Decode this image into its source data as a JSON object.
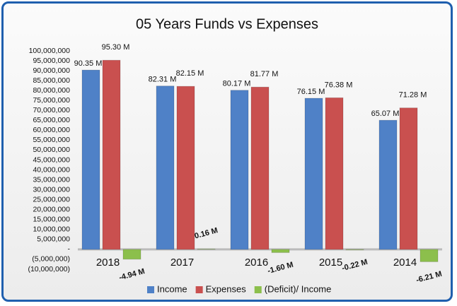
{
  "chart_data": {
    "type": "bar",
    "title": "05 Years Funds vs Expenses",
    "categories": [
      "2018",
      "2017",
      "2016",
      "2015",
      "2014"
    ],
    "series": [
      {
        "name": "Income",
        "color": "#4f81c7",
        "values": [
          90350000,
          82310000,
          80170000,
          76150000,
          65070000
        ],
        "value_labels": [
          "90.35 M",
          "82.31 M",
          "80.17 M",
          "76.15 M",
          "65.07 M"
        ]
      },
      {
        "name": "Expenses",
        "color": "#c9504f",
        "values": [
          95300000,
          82150000,
          81770000,
          76380000,
          71280000
        ],
        "value_labels": [
          "95.30 M",
          "82.15 M",
          "81.77 M",
          "76.38 M",
          "71.28 M"
        ]
      },
      {
        "name": "(Deficit)/ Income",
        "color": "#8cbf4c",
        "values": [
          -4940000,
          160000,
          -1600000,
          -220000,
          -6210000
        ],
        "value_labels": [
          "-4.94 M",
          "0.16 M",
          "-1.60 M",
          "-0.22 M",
          "-6.21 M"
        ]
      }
    ],
    "ylim": [
      -10000000,
      100000000
    ],
    "yticks": [
      {
        "value": -10000000,
        "label": "(10,000,000)"
      },
      {
        "value": -5000000,
        "label": "(5,000,000)"
      },
      {
        "value": 0,
        "label": "-"
      },
      {
        "value": 5000000,
        "label": "5,000,000"
      },
      {
        "value": 10000000,
        "label": "10,000,000"
      },
      {
        "value": 15000000,
        "label": "15,000,000"
      },
      {
        "value": 20000000,
        "label": "20,000,000"
      },
      {
        "value": 25000000,
        "label": "25,000,000"
      },
      {
        "value": 30000000,
        "label": "30,000,000"
      },
      {
        "value": 35000000,
        "label": "35,000,000"
      },
      {
        "value": 40000000,
        "label": "40,000,000"
      },
      {
        "value": 45000000,
        "label": "45,000,000"
      },
      {
        "value": 50000000,
        "label": "50,000,000"
      },
      {
        "value": 55000000,
        "label": "55,000,000"
      },
      {
        "value": 60000000,
        "label": "60,000,000"
      },
      {
        "value": 65000000,
        "label": "65,000,000"
      },
      {
        "value": 70000000,
        "label": "70,000,000"
      },
      {
        "value": 75000000,
        "label": "75,000,000"
      },
      {
        "value": 80000000,
        "label": "80,000,000"
      },
      {
        "value": 85000000,
        "label": "85,000,000"
      },
      {
        "value": 90000000,
        "label": "90,000,000"
      },
      {
        "value": 95000000,
        "label": "95,000,000"
      },
      {
        "value": 100000000,
        "label": "100,000,000"
      }
    ],
    "grid": false,
    "legend": "bottom"
  }
}
